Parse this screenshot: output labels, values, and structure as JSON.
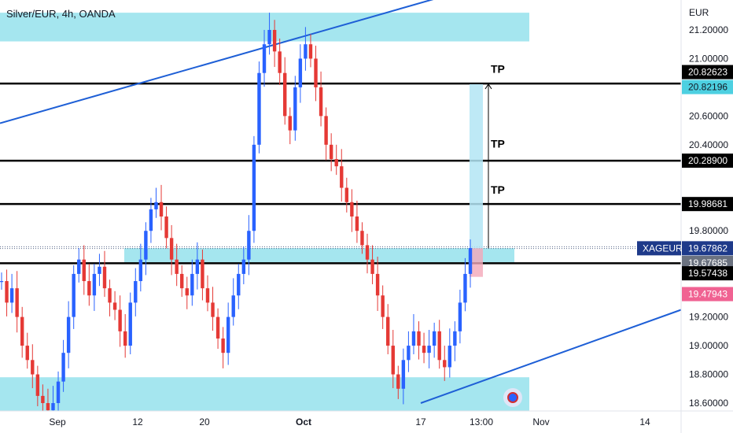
{
  "header": {
    "title": "Silver/EUR, 4h, OANDA"
  },
  "axis": {
    "currency": "EUR",
    "y_ticks": [
      "21.20000",
      "21.00000",
      "20.60000",
      "20.40000",
      "19.80000",
      "19.20000",
      "19.00000",
      "18.80000",
      "18.60000"
    ],
    "x_ticks": [
      "Sep",
      "12",
      "20",
      "Oct",
      "17",
      "13:00",
      "Nov",
      "14"
    ]
  },
  "price_labels": [
    {
      "text": "20.82623",
      "bg": "#000000",
      "fg": "#ffffff"
    },
    {
      "text": "20.82196",
      "bg": "#4dd0e1",
      "fg": "#131722"
    },
    {
      "text": "20.28900",
      "bg": "#000000",
      "fg": "#ffffff"
    },
    {
      "text": "19.98681",
      "bg": "#000000",
      "fg": "#ffffff"
    },
    {
      "text": "19.67862",
      "bg": "#1e3a8a",
      "fg": "#ffffff"
    },
    {
      "text": "19.67685",
      "bg": "#6b7280",
      "fg": "#ffffff"
    },
    {
      "text": "19.57438",
      "bg": "#000000",
      "fg": "#ffffff"
    },
    {
      "text": "19.47943",
      "bg": "#f06292",
      "fg": "#ffffff"
    }
  ],
  "symbol_label": "XAGEUR",
  "tp_labels": [
    "TP",
    "TP",
    "TP"
  ],
  "colors": {
    "up": "#2962ff",
    "down": "#e53935",
    "zone": "#7fdbe8",
    "trend": "#1e5fd6"
  },
  "chart_data": {
    "type": "candlestick",
    "title": "Silver/EUR, 4h, OANDA",
    "ylabel": "EUR",
    "ylim": [
      18.55,
      21.42
    ],
    "horizontal_levels": [
      20.82623,
      20.289,
      19.98681,
      19.57438
    ],
    "zones": [
      {
        "from": 21.12,
        "to": 21.32,
        "x_range": [
          "start",
          "Nov"
        ]
      },
      {
        "from": 19.58,
        "to": 19.68,
        "x_range": [
          "12",
          "13:00"
        ]
      },
      {
        "from": 18.52,
        "to": 18.78,
        "x_range": [
          "start",
          "Nov"
        ]
      }
    ],
    "trendlines": [
      {
        "from": {
          "x": "start",
          "y": 20.55
        },
        "to": {
          "x": "Nov",
          "y": 21.42
        }
      },
      {
        "from": {
          "x": "17",
          "y": 18.6
        },
        "to": {
          "x": "end",
          "y": 19.25
        }
      }
    ],
    "position": {
      "entry": 19.67862,
      "target": 20.82196,
      "stop": 19.47943
    },
    "series": [
      {
        "close_path": [
          19.45,
          19.3,
          19.4,
          19.2,
          19.0,
          18.9,
          18.8,
          18.65,
          18.6,
          18.55,
          18.6,
          18.75,
          18.95,
          19.2,
          19.5,
          19.6,
          19.45,
          19.35,
          19.5,
          19.55,
          19.4,
          19.3,
          19.25,
          19.1,
          19.0,
          19.3,
          19.45,
          19.6,
          19.8,
          19.95,
          20.0,
          19.9,
          19.75,
          19.6,
          19.5,
          19.4,
          19.35,
          19.5,
          19.6,
          19.4,
          19.3,
          19.2,
          19.05,
          18.95,
          19.2,
          19.35,
          19.5,
          19.6,
          19.8,
          20.4,
          20.9,
          21.1,
          21.2,
          21.05,
          20.9,
          20.6,
          20.5,
          20.8,
          21.0,
          21.1,
          21.0,
          20.8,
          20.6,
          20.4,
          20.3,
          20.25,
          20.1,
          20.0,
          19.9,
          19.8,
          19.7,
          19.6,
          19.5,
          19.35,
          19.2,
          19.0,
          18.8,
          18.7,
          18.9,
          19.0,
          19.1,
          19.0,
          18.95,
          19.0,
          19.1,
          18.9,
          18.85,
          19.0,
          19.1,
          19.3,
          19.5,
          19.68
        ]
      }
    ]
  }
}
